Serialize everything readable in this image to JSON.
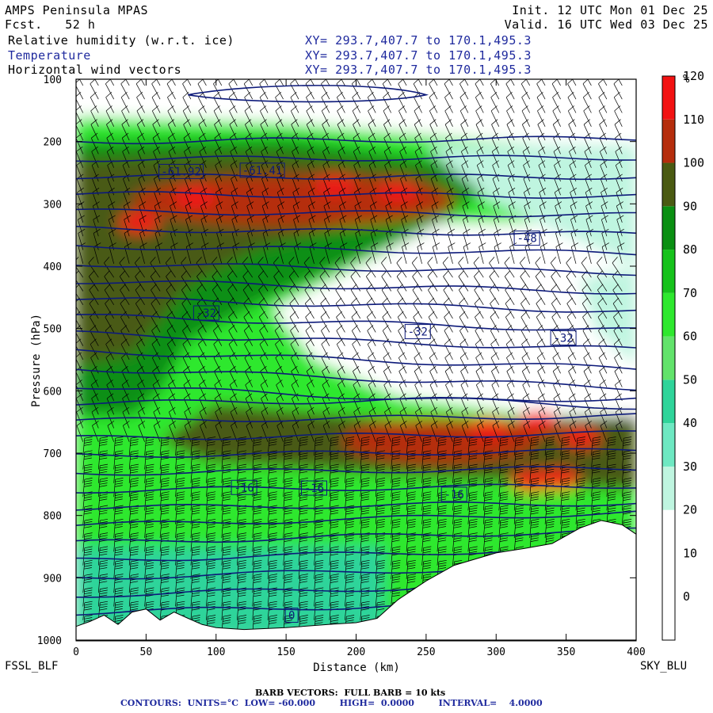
{
  "header": {
    "model": "AMPS Peninsula MPAS",
    "fcst": "Fcst.   52 h",
    "init": "Init. 12 UTC Mon 01 Dec 25",
    "valid": "Valid. 16 UTC Wed 03 Dec 25",
    "fields": [
      {
        "name": "Relative humidity (w.r.t. ice)",
        "xy": "XY= 293.7,407.7 to 170.1,495.3"
      },
      {
        "name": "Temperature",
        "xy": "XY= 293.7,407.7 to 170.1,495.3"
      },
      {
        "name": "Horizontal wind vectors",
        "xy": "XY= 293.7,407.7 to 170.1,495.3"
      }
    ]
  },
  "endpoints": {
    "left": "FSSL_BLF",
    "right": "SKY_BLU"
  },
  "footer": {
    "barb": "BARB VECTORS:  FULL BARB = 10 kts",
    "contours": "CONTOURS:  UNITS=°C  LOW= -60.000        HIGH=  0.0000        INTERVAL=    4.0000"
  },
  "colors": {
    "contour": "#0d1a7a",
    "terrain": "#ffffff",
    "barb": "#000000"
  },
  "chart_data": {
    "type": "heatmap",
    "xlabel": "Distance (km)",
    "ylabel": "Pressure (hPa)",
    "xlim": [
      0,
      400
    ],
    "ylim": [
      1000,
      100
    ],
    "xticks": [
      0,
      50,
      100,
      150,
      200,
      250,
      300,
      350,
      400
    ],
    "yticks": [
      100,
      200,
      300,
      400,
      500,
      600,
      700,
      800,
      900,
      1000
    ],
    "colorbar": {
      "unit": "%",
      "levels": [
        0,
        10,
        20,
        30,
        40,
        50,
        60,
        70,
        80,
        90,
        100,
        110,
        120
      ],
      "colors": [
        "#ffffff",
        "#ffffff",
        "#ffffff",
        "#bff5e0",
        "#6ee8c2",
        "#2fd49a",
        "#62e36b",
        "#2ee82e",
        "#16c21b",
        "#0a8f12",
        "#4a5a12",
        "#b52d0c",
        "#f21212"
      ]
    },
    "terrain_surface": [
      [
        0,
        978
      ],
      [
        10,
        970
      ],
      [
        20,
        960
      ],
      [
        30,
        975
      ],
      [
        40,
        955
      ],
      [
        50,
        950
      ],
      [
        60,
        968
      ],
      [
        70,
        955
      ],
      [
        80,
        965
      ],
      [
        90,
        975
      ],
      [
        100,
        980
      ],
      [
        120,
        983
      ],
      [
        150,
        980
      ],
      [
        180,
        975
      ],
      [
        200,
        972
      ],
      [
        215,
        965
      ],
      [
        230,
        935
      ],
      [
        250,
        905
      ],
      [
        270,
        880
      ],
      [
        300,
        860
      ],
      [
        320,
        853
      ],
      [
        340,
        845
      ],
      [
        360,
        820
      ],
      [
        375,
        808
      ],
      [
        390,
        815
      ],
      [
        400,
        830
      ]
    ],
    "temperature_contour_labels": [
      {
        "label": "-61.92",
        "x": 75,
        "p": 248
      },
      {
        "label": "-61.41",
        "x": 133,
        "p": 246
      },
      {
        "label": "-48",
        "x": 322,
        "p": 355
      },
      {
        "label": "-32",
        "x": 93,
        "p": 475
      },
      {
        "label": "-32",
        "x": 244,
        "p": 505
      },
      {
        "label": "-32",
        "x": 348,
        "p": 515
      },
      {
        "label": "-16",
        "x": 120,
        "p": 755
      },
      {
        "label": "-16",
        "x": 170,
        "p": 756
      },
      {
        "label": "-16",
        "x": 270,
        "p": 766
      },
      {
        "label": "0",
        "x": 154,
        "p": 960
      }
    ],
    "rh_regions": [
      {
        "level": 120,
        "desc": "upper moist layer 250-340 hPa, x 40-270",
        "x": [
          40,
          270
        ],
        "p": [
          250,
          340
        ]
      },
      {
        "level": 120,
        "desc": "mid layer 640-720 hPa, x 190-330",
        "x": [
          190,
          330
        ],
        "p": [
          640,
          720
        ]
      },
      {
        "level": 0,
        "desc": "dry slot 300-650 hPa",
        "x": [
          150,
          400
        ],
        "p": [
          300,
          650
        ]
      }
    ]
  }
}
